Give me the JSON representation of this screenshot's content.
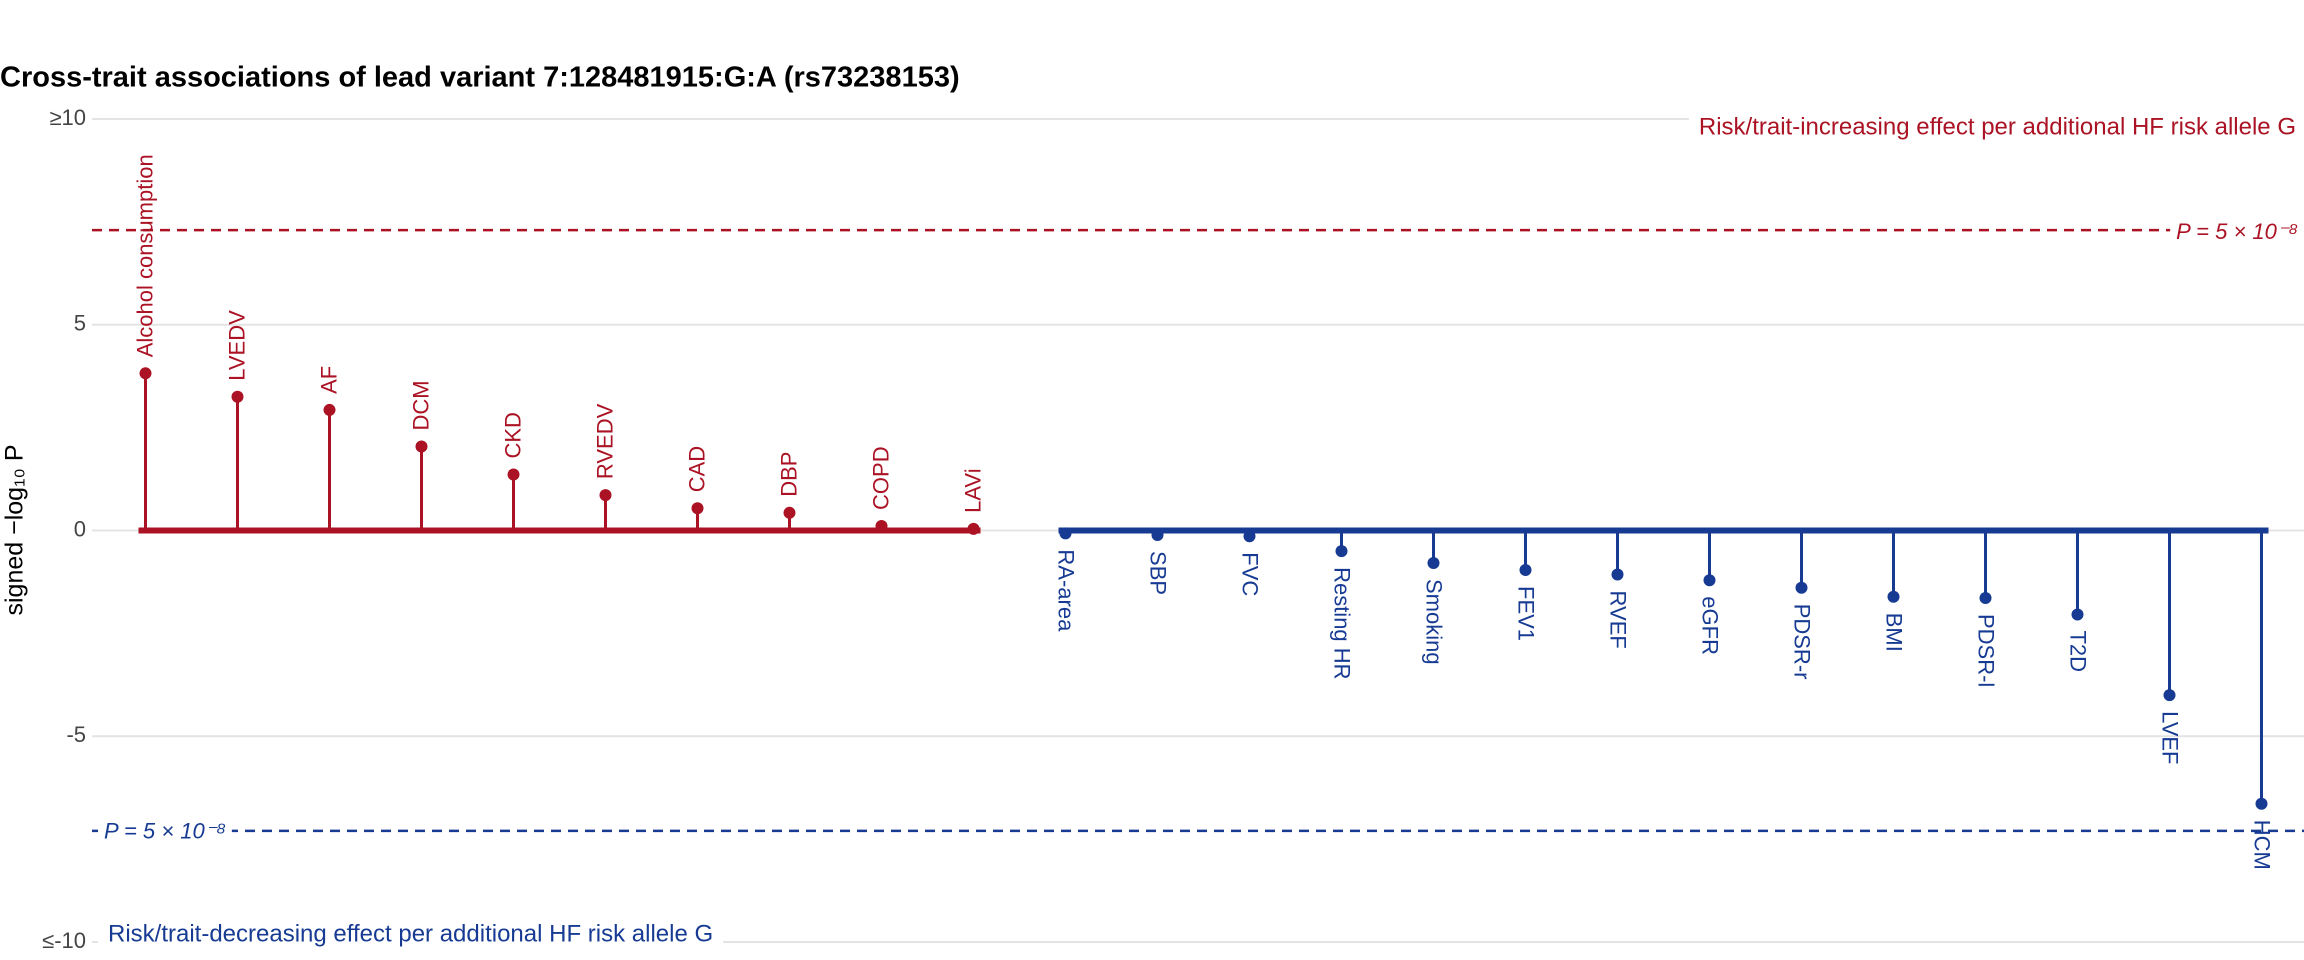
{
  "chart_data": {
    "type": "lollipop",
    "title": "Cross-trait associations of lead variant 7:128481915:G:A (rs73238153)",
    "y_label": "signed −log₁₀ P",
    "categories": [
      "Alcohol consumption",
      "LVEDV",
      "AF",
      "DCM",
      "CKD",
      "RVEDV",
      "CAD",
      "DBP",
      "COPD",
      "LAVi",
      "RA-area",
      "SBP",
      "FVC",
      "Resting HR",
      "Smoking",
      "FEV1",
      "RVEF",
      "eGFR",
      "PDSR-r",
      "BMI",
      "PDSR-l",
      "T2D",
      "LVEF",
      "HCM"
    ],
    "values": [
      3.82,
      3.25,
      2.93,
      2.04,
      1.36,
      0.86,
      0.54,
      0.43,
      0.11,
      0.04,
      -0.07,
      -0.11,
      -0.14,
      -0.5,
      -0.79,
      -0.96,
      -1.07,
      -1.21,
      -1.39,
      -1.61,
      -1.64,
      -2.04,
      -4.0,
      -6.64
    ],
    "positive_color": "#ab1324",
    "negative_color": "#173b93",
    "ylim": [
      -10,
      10
    ],
    "yticks": [
      {
        "value": 10,
        "label": "≥10"
      },
      5,
      0,
      -5,
      {
        "value": -10,
        "label": "≤-10"
      }
    ],
    "grid": true,
    "threshold": {
      "value": 7.3,
      "label": "P = 5 × 10⁻⁸"
    },
    "positive_annotation": "Risk/trait-increasing effect per additional HF risk allele G",
    "negative_annotation": "Risk/trait-decreasing effect per additional HF risk allele G"
  }
}
